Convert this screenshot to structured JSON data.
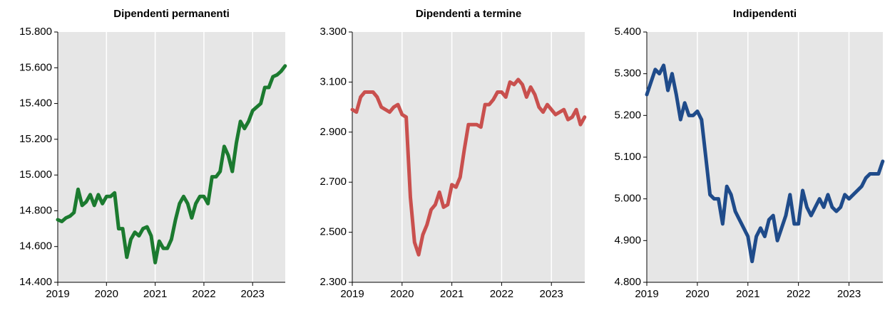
{
  "chart_data": [
    {
      "type": "line",
      "title": "Dipendenti permanenti",
      "color": "#1b7a2f",
      "x": [
        2019,
        2019.083,
        2019.167,
        2019.25,
        2019.333,
        2019.417,
        2019.5,
        2019.583,
        2019.667,
        2019.75,
        2019.833,
        2019.917,
        2020,
        2020.083,
        2020.167,
        2020.25,
        2020.333,
        2020.417,
        2020.5,
        2020.583,
        2020.667,
        2020.75,
        2020.833,
        2020.917,
        2021,
        2021.083,
        2021.167,
        2021.25,
        2021.333,
        2021.417,
        2021.5,
        2021.583,
        2021.667,
        2021.75,
        2021.833,
        2021.917,
        2022,
        2022.083,
        2022.167,
        2022.25,
        2022.333,
        2022.417,
        2022.5,
        2022.583,
        2022.667,
        2022.75,
        2022.833,
        2022.917,
        2023,
        2023.083,
        2023.167,
        2023.25,
        2023.333,
        2023.417,
        2023.5,
        2023.583,
        2023.667
      ],
      "values": [
        14750,
        14740,
        14760,
        14770,
        14790,
        14920,
        14830,
        14850,
        14890,
        14830,
        14890,
        14840,
        14880,
        14880,
        14900,
        14700,
        14700,
        14540,
        14640,
        14680,
        14660,
        14700,
        14710,
        14660,
        14510,
        14630,
        14590,
        14590,
        14640,
        14750,
        14840,
        14880,
        14840,
        14760,
        14840,
        14880,
        14880,
        14840,
        14990,
        14990,
        15020,
        15160,
        15110,
        15020,
        15180,
        15300,
        15260,
        15300,
        15360,
        15380,
        15400,
        15490,
        15490,
        15550,
        15560,
        15580,
        15610
      ],
      "xlim": [
        2019,
        2023.67
      ],
      "xticks": [
        2019,
        2020,
        2021,
        2022,
        2023
      ],
      "ylim": [
        14400,
        15800
      ],
      "yticks": [
        {
          "value": 14400,
          "label": "14.400"
        },
        {
          "value": 14600,
          "label": "14.600"
        },
        {
          "value": 14800,
          "label": "14.800"
        },
        {
          "value": 15000,
          "label": "15.000"
        },
        {
          "value": 15200,
          "label": "15.200"
        },
        {
          "value": 15400,
          "label": "15.400"
        },
        {
          "value": 15600,
          "label": "15.600"
        },
        {
          "value": 15800,
          "label": "15.800"
        }
      ]
    },
    {
      "type": "line",
      "title": "Dipendenti a termine",
      "color": "#c9504e",
      "x": [
        2019,
        2019.083,
        2019.167,
        2019.25,
        2019.333,
        2019.417,
        2019.5,
        2019.583,
        2019.667,
        2019.75,
        2019.833,
        2019.917,
        2020,
        2020.083,
        2020.167,
        2020.25,
        2020.333,
        2020.417,
        2020.5,
        2020.583,
        2020.667,
        2020.75,
        2020.833,
        2020.917,
        2021,
        2021.083,
        2021.167,
        2021.25,
        2021.333,
        2021.417,
        2021.5,
        2021.583,
        2021.667,
        2021.75,
        2021.833,
        2021.917,
        2022,
        2022.083,
        2022.167,
        2022.25,
        2022.333,
        2022.417,
        2022.5,
        2022.583,
        2022.667,
        2022.75,
        2022.833,
        2022.917,
        2023,
        2023.083,
        2023.167,
        2023.25,
        2023.333,
        2023.417,
        2023.5,
        2023.583,
        2023.667
      ],
      "values": [
        2990,
        2980,
        3040,
        3060,
        3060,
        3060,
        3040,
        3000,
        2990,
        2980,
        3000,
        3010,
        2970,
        2960,
        2640,
        2460,
        2410,
        2490,
        2530,
        2590,
        2610,
        2660,
        2600,
        2610,
        2690,
        2680,
        2720,
        2830,
        2930,
        2930,
        2930,
        2920,
        3010,
        3010,
        3030,
        3060,
        3060,
        3040,
        3100,
        3090,
        3110,
        3090,
        3040,
        3080,
        3050,
        3000,
        2980,
        3010,
        2990,
        2970,
        2980,
        2990,
        2950,
        2960,
        2990,
        2930,
        2960
      ],
      "xlim": [
        2019,
        2023.67
      ],
      "xticks": [
        2019,
        2020,
        2021,
        2022,
        2023
      ],
      "ylim": [
        2300,
        3300
      ],
      "yticks": [
        {
          "value": 2300,
          "label": "2.300"
        },
        {
          "value": 2500,
          "label": "2.500"
        },
        {
          "value": 2700,
          "label": "2.700"
        },
        {
          "value": 2900,
          "label": "2.900"
        },
        {
          "value": 3100,
          "label": "3.100"
        },
        {
          "value": 3300,
          "label": "3.300"
        }
      ]
    },
    {
      "type": "line",
      "title": "Indipendenti",
      "color": "#1f4b8a",
      "x": [
        2019,
        2019.083,
        2019.167,
        2019.25,
        2019.333,
        2019.417,
        2019.5,
        2019.583,
        2019.667,
        2019.75,
        2019.833,
        2019.917,
        2020,
        2020.083,
        2020.167,
        2020.25,
        2020.333,
        2020.417,
        2020.5,
        2020.583,
        2020.667,
        2020.75,
        2020.833,
        2020.917,
        2021,
        2021.083,
        2021.167,
        2021.25,
        2021.333,
        2021.417,
        2021.5,
        2021.583,
        2021.667,
        2021.75,
        2021.833,
        2021.917,
        2022,
        2022.083,
        2022.167,
        2022.25,
        2022.333,
        2022.417,
        2022.5,
        2022.583,
        2022.667,
        2022.75,
        2022.833,
        2022.917,
        2023,
        2023.083,
        2023.167,
        2023.25,
        2023.333,
        2023.417,
        2023.5,
        2023.583,
        2023.667
      ],
      "values": [
        5250,
        5280,
        5310,
        5300,
        5320,
        5260,
        5300,
        5250,
        5190,
        5230,
        5200,
        5200,
        5210,
        5190,
        5100,
        5010,
        5000,
        5000,
        4940,
        5030,
        5010,
        4970,
        4950,
        4930,
        4910,
        4850,
        4910,
        4930,
        4910,
        4950,
        4960,
        4900,
        4930,
        4960,
        5010,
        4940,
        4940,
        5020,
        4980,
        4960,
        4980,
        5000,
        4980,
        5010,
        4980,
        4970,
        4980,
        5010,
        5000,
        5010,
        5020,
        5030,
        5050,
        5060,
        5060,
        5060,
        5090
      ],
      "xlim": [
        2019,
        2023.67
      ],
      "xticks": [
        2019,
        2020,
        2021,
        2022,
        2023
      ],
      "ylim": [
        4800,
        5400
      ],
      "yticks": [
        {
          "value": 4800,
          "label": "4.800"
        },
        {
          "value": 4900,
          "label": "4.900"
        },
        {
          "value": 5000,
          "label": "5.000"
        },
        {
          "value": 5100,
          "label": "5.100"
        },
        {
          "value": 5200,
          "label": "5.200"
        },
        {
          "value": 5300,
          "label": "5.300"
        },
        {
          "value": 5400,
          "label": "5.400"
        }
      ]
    }
  ]
}
